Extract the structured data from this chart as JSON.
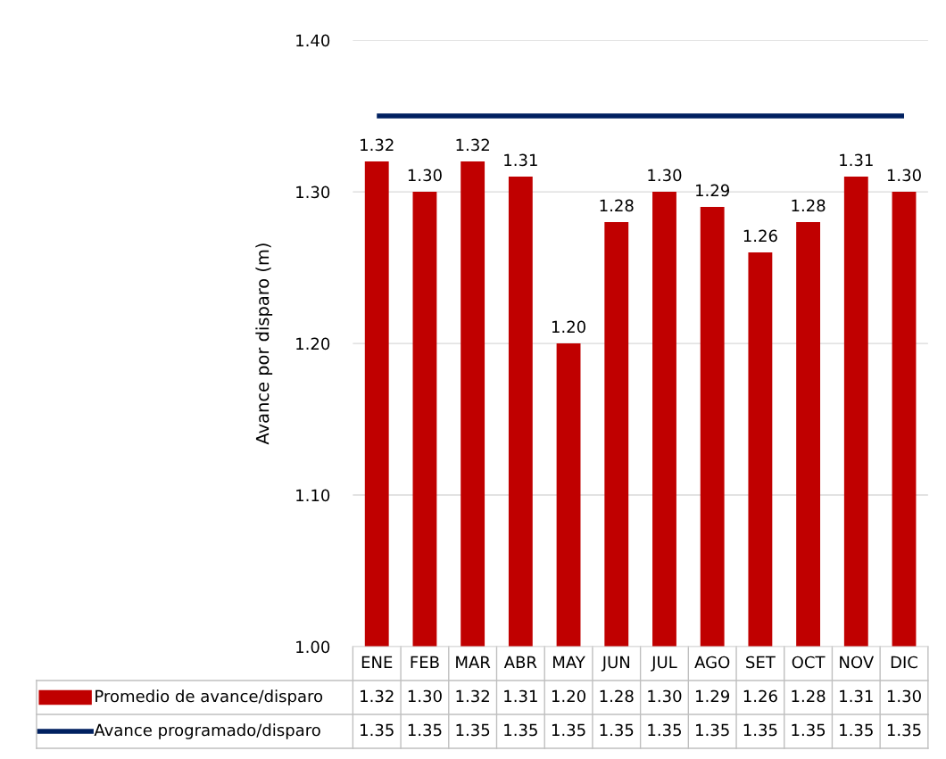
{
  "chart_data": {
    "type": "bar",
    "ylabel": "Avance por disparo (m)",
    "categories": [
      "ENE",
      "FEB",
      "MAR",
      "ABR",
      "MAY",
      "JUN",
      "JUL",
      "AGO",
      "SET",
      "OCT",
      "NOV",
      "DIC"
    ],
    "series": [
      {
        "name": "Promedio de avance/disparo",
        "color": "#c00000",
        "values": [
          1.32,
          1.3,
          1.32,
          1.31,
          1.2,
          1.28,
          1.3,
          1.29,
          1.26,
          1.28,
          1.31,
          1.3
        ],
        "value_labels": [
          "1.32",
          "1.30",
          "1.32",
          "1.31",
          "1.20",
          "1.28",
          "1.30",
          "1.29",
          "1.26",
          "1.28",
          "1.31",
          "1.30"
        ]
      },
      {
        "name": "Avance programado/disparo",
        "type": "line",
        "color": "#002060",
        "values": [
          1.35,
          1.35,
          1.35,
          1.35,
          1.35,
          1.35,
          1.35,
          1.35,
          1.35,
          1.35,
          1.35,
          1.35
        ],
        "value_labels": [
          "1.35",
          "1.35",
          "1.35",
          "1.35",
          "1.35",
          "1.35",
          "1.35",
          "1.35",
          "1.35",
          "1.35",
          "1.35",
          "1.35"
        ]
      }
    ],
    "ylim": [
      1.0,
      1.4
    ],
    "yticks": [
      {
        "value": 1.0,
        "label": "1.00"
      },
      {
        "value": 1.1,
        "label": "1.10"
      },
      {
        "value": 1.2,
        "label": "1.20"
      },
      {
        "value": 1.3,
        "label": "1.30"
      },
      {
        "value": 1.4,
        "label": "1.40"
      }
    ],
    "grid": "y",
    "legend": "bottom"
  }
}
